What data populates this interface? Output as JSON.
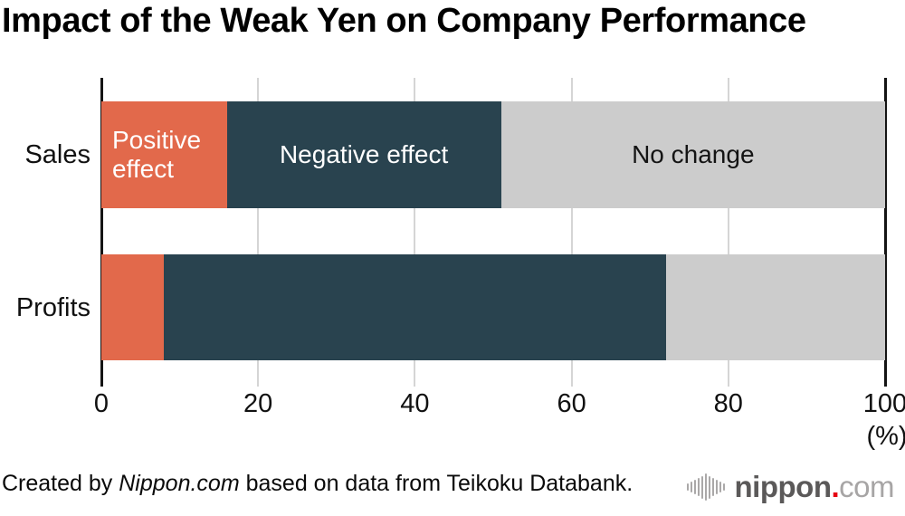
{
  "title": "Impact of the Weak Yen on Company Performance",
  "chart_data": {
    "type": "bar",
    "orientation": "horizontal",
    "stacked": true,
    "title": "Impact of the Weak Yen on Company Performance",
    "categories": [
      "Sales",
      "Profits"
    ],
    "series": [
      {
        "name": "Positive effect",
        "color": "#e2694b",
        "values": [
          16,
          8
        ]
      },
      {
        "name": "Negative effect",
        "color": "#29434f",
        "values": [
          35,
          64
        ]
      },
      {
        "name": "No change",
        "color": "#cccccc",
        "values": [
          49,
          28
        ]
      }
    ],
    "xlim": [
      0,
      100
    ],
    "x_ticks": [
      0,
      20,
      40,
      60,
      80,
      100
    ],
    "x_unit_label": "(%)",
    "grid": true,
    "legend": "labels-inside-first-bar",
    "bar_labels": {
      "Sales": [
        {
          "text": "Positive effect",
          "color": "#ffffff",
          "align": "left"
        },
        {
          "text": "Negative effect",
          "color": "#ffffff",
          "align": "center"
        },
        {
          "text": "No change",
          "color": "#141414",
          "align": "center"
        }
      ],
      "Profits": null
    }
  },
  "colors": {
    "gridline": "#d5d5d5",
    "axis": "#141414",
    "background": "#ffffff"
  },
  "footer": {
    "credit_prefix": "Created by ",
    "credit_source": "Nippon.com",
    "credit_suffix": " based on data from Teikoku Databank.",
    "logo": {
      "main": "nippon",
      "dot": ".",
      "suffix": "com",
      "icon": "soundwave-icon"
    }
  }
}
